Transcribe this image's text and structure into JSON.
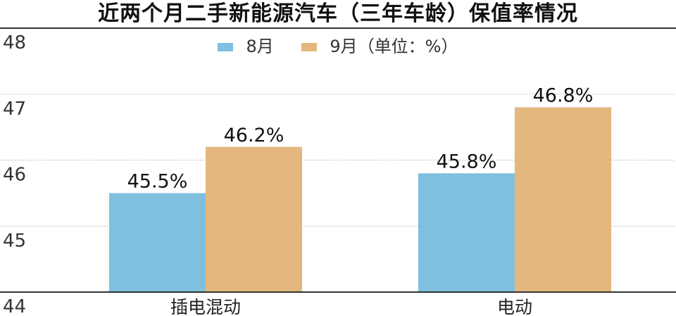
{
  "chart_data": {
    "type": "bar",
    "title": "近两个月二手新能源汽车（三年车龄）保值率情况",
    "categories": [
      "插电混动",
      "电动"
    ],
    "series": [
      {
        "name": "8月",
        "values": [
          45.5,
          45.8
        ],
        "labels": [
          "45.5%",
          "45.8%"
        ],
        "color": "#7fc0de"
      },
      {
        "name": "9月",
        "values": [
          46.2,
          46.8
        ],
        "labels": [
          "46.2%",
          "46.8%"
        ],
        "color": "#e3b77d"
      }
    ],
    "unit_note": "（单位：%）",
    "yticks": [
      "44",
      "45",
      "46",
      "47",
      "48"
    ],
    "ylim": [
      44,
      48
    ],
    "grid": true,
    "legend": "top-center"
  }
}
